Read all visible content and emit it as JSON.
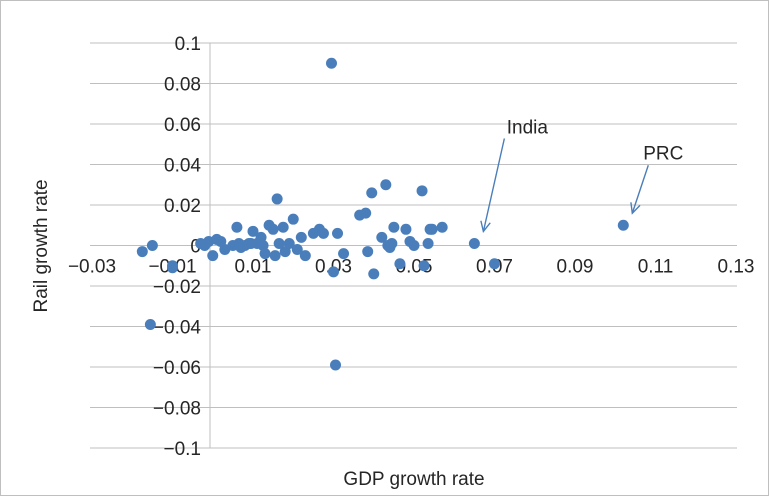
{
  "chart_data": {
    "type": "scatter",
    "title": "",
    "xlabel": "GDP growth rate",
    "ylabel": "Rail growth rate",
    "xlim": [
      -0.03,
      0.13
    ],
    "ylim": [
      -0.1,
      0.1
    ],
    "x_ticks": [
      "−0.03",
      "−0.01",
      "0.01",
      "0.03",
      "0.05",
      "0.07",
      "0.09",
      "0.11",
      "0.13"
    ],
    "y_ticks": [
      "0.1",
      "0.08",
      "0.06",
      "0.04",
      "0.02",
      "0",
      "−0.02",
      "−0.04",
      "−0.06",
      "−0.08",
      "−0.1"
    ],
    "grid": "horizontal",
    "marker_color": "#4a7ebb",
    "gridline_color": "#bfbfbf",
    "annotations": [
      {
        "text": "India",
        "x": 0.065,
        "y": 0.001
      },
      {
        "text": "PRC",
        "x": 0.102,
        "y": 0.01
      }
    ],
    "series": [
      {
        "x": [
          -0.0175,
          -0.015,
          -0.0155,
          -0.01,
          -0.01,
          -0.002,
          -0.003,
          -0.001,
          0.001,
          0.0,
          0.002,
          0.003,
          0.005,
          0.006,
          0.0065,
          0.007,
          0.008,
          0.009,
          0.0095,
          0.01,
          0.011,
          0.012,
          0.0125,
          0.013,
          0.014,
          0.015,
          0.0155,
          0.016,
          0.0165,
          0.0175,
          0.018,
          0.019,
          0.02,
          0.021,
          0.022,
          0.023,
          0.025,
          0.0265,
          0.0275,
          0.03,
          0.031,
          0.0325,
          0.0365,
          0.038,
          0.0385,
          0.0395,
          0.04,
          0.042,
          0.043,
          0.0435,
          0.044,
          0.0445,
          0.045,
          0.0465,
          0.048,
          0.049,
          0.05,
          0.052,
          0.0525,
          0.0535,
          0.054,
          0.0545,
          0.057,
          0.065,
          0.07,
          0.102,
          0.0295,
          0.0305
        ],
        "y": [
          -0.003,
          0.0,
          -0.039,
          -0.01,
          -0.011,
          0.0,
          0.001,
          0.002,
          0.003,
          -0.005,
          0.002,
          -0.002,
          0.0,
          0.009,
          0.001,
          -0.001,
          0.0,
          0.001,
          0.001,
          0.007,
          0.001,
          0.004,
          0.0,
          -0.004,
          0.01,
          0.008,
          -0.005,
          0.023,
          0.001,
          0.009,
          -0.003,
          0.001,
          0.013,
          -0.002,
          0.004,
          -0.005,
          0.006,
          0.008,
          0.006,
          -0.013,
          0.006,
          -0.004,
          0.015,
          0.016,
          -0.003,
          0.026,
          -0.014,
          0.004,
          0.03,
          0.0,
          -0.001,
          0.001,
          0.009,
          -0.009,
          0.008,
          0.002,
          0.0,
          0.027,
          -0.01,
          0.001,
          0.008,
          0.008,
          0.009,
          0.001,
          -0.009,
          0.01,
          0.09,
          -0.059
        ]
      }
    ]
  }
}
